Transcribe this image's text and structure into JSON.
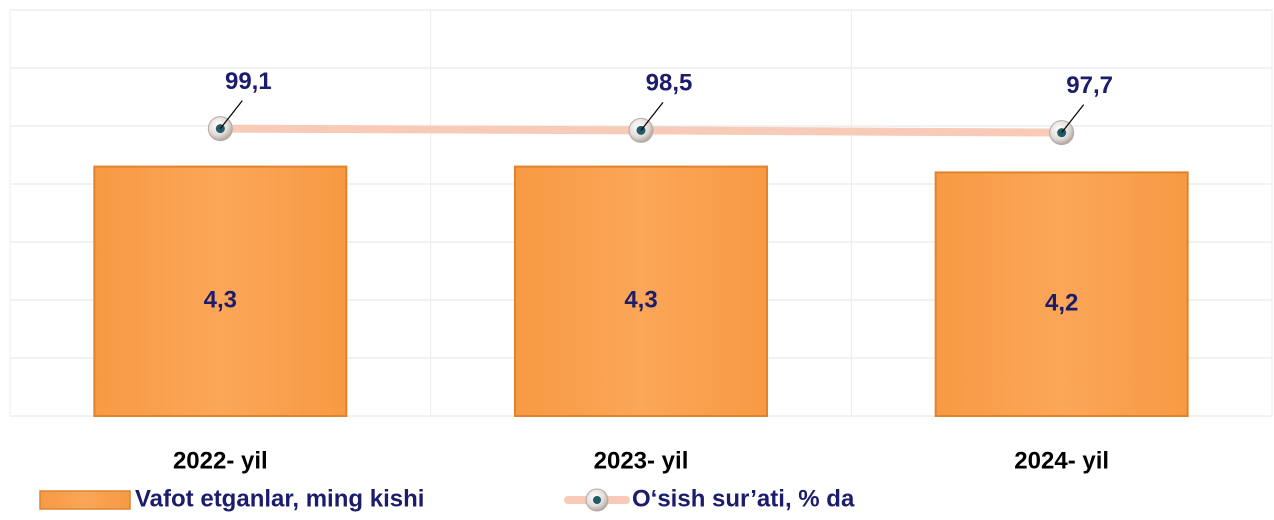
{
  "chart_data": {
    "type": "bar",
    "categories": [
      "2022- yil",
      "2023- yil",
      "2024- yil"
    ],
    "series": [
      {
        "name": "Vafot etganlar, ming kishi",
        "type": "bar",
        "color": "#f9a04f",
        "values": [
          4.3,
          4.3,
          4.2
        ],
        "value_labels": [
          "4,3",
          "4,3",
          "4,2"
        ]
      },
      {
        "name": "O‘sish sur’ati, % da",
        "type": "line",
        "axis": "y2",
        "color": "#f8cbb8",
        "values": [
          99.1,
          98.5,
          97.7
        ],
        "value_labels": [
          "99,1",
          "98,5",
          "97,7"
        ]
      }
    ],
    "ylim": [
      0,
      7
    ],
    "yticks": [
      0,
      1,
      2,
      3,
      4,
      5,
      6,
      7
    ],
    "y2lim": [
      0,
      140
    ],
    "grid": true,
    "legend": "bottom"
  }
}
